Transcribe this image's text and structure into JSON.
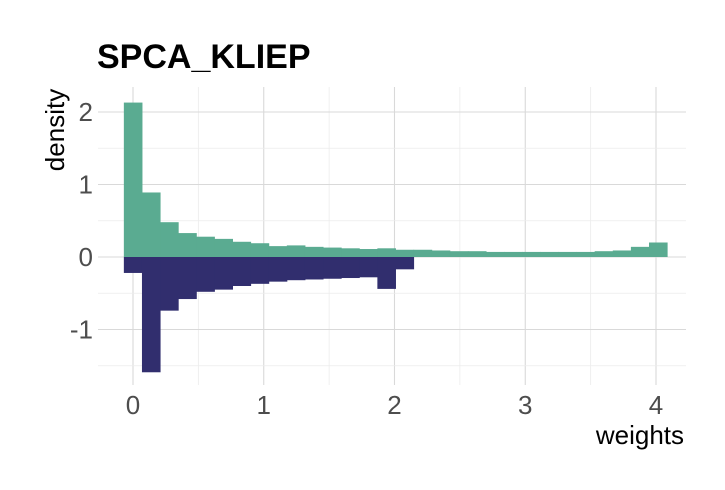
{
  "chart_data": {
    "type": "bar",
    "title": "SPCA_KLIEP",
    "xlabel": "weights",
    "ylabel": "density",
    "xlim": [
      -0.1,
      4.2
    ],
    "ylim": [
      -1.6,
      2.2
    ],
    "xticks": [
      0,
      1,
      2,
      3,
      4
    ],
    "yticks": [
      2,
      1,
      0,
      -1
    ],
    "grid": true,
    "bin_width": 0.1385,
    "series": [
      {
        "color": "#5aab91",
        "direction": "up",
        "bins": [
          [
            -0.07,
            2.13
          ],
          [
            0.0685,
            0.89
          ],
          [
            0.207,
            0.48
          ],
          [
            0.3455,
            0.33
          ],
          [
            0.484,
            0.28
          ],
          [
            0.6225,
            0.25
          ],
          [
            0.761,
            0.21
          ],
          [
            0.8995,
            0.19
          ],
          [
            1.038,
            0.15
          ],
          [
            1.1765,
            0.16
          ],
          [
            1.315,
            0.14
          ],
          [
            1.4535,
            0.13
          ],
          [
            1.592,
            0.12
          ],
          [
            1.7305,
            0.11
          ],
          [
            1.869,
            0.12
          ],
          [
            2.0075,
            0.1
          ],
          [
            2.146,
            0.1
          ],
          [
            2.2845,
            0.09
          ],
          [
            2.423,
            0.08
          ],
          [
            2.5615,
            0.08
          ],
          [
            2.7,
            0.07
          ],
          [
            2.8385,
            0.07
          ],
          [
            2.977,
            0.07
          ],
          [
            3.1155,
            0.07
          ],
          [
            3.254,
            0.07
          ],
          [
            3.3925,
            0.07
          ],
          [
            3.531,
            0.08
          ],
          [
            3.6695,
            0.09
          ],
          [
            3.808,
            0.14
          ],
          [
            3.9465,
            0.2
          ]
        ]
      },
      {
        "color": "#312e6e",
        "direction": "down",
        "bins": [
          [
            -0.07,
            0.22
          ],
          [
            0.0685,
            1.59
          ],
          [
            0.207,
            0.74
          ],
          [
            0.3455,
            0.58
          ],
          [
            0.484,
            0.48
          ],
          [
            0.6225,
            0.45
          ],
          [
            0.761,
            0.4
          ],
          [
            0.8995,
            0.37
          ],
          [
            1.038,
            0.34
          ],
          [
            1.1765,
            0.32
          ],
          [
            1.315,
            0.31
          ],
          [
            1.4535,
            0.3
          ],
          [
            1.592,
            0.29
          ],
          [
            1.7305,
            0.28
          ],
          [
            1.869,
            0.44
          ],
          [
            2.0075,
            0.17
          ]
        ]
      }
    ]
  }
}
